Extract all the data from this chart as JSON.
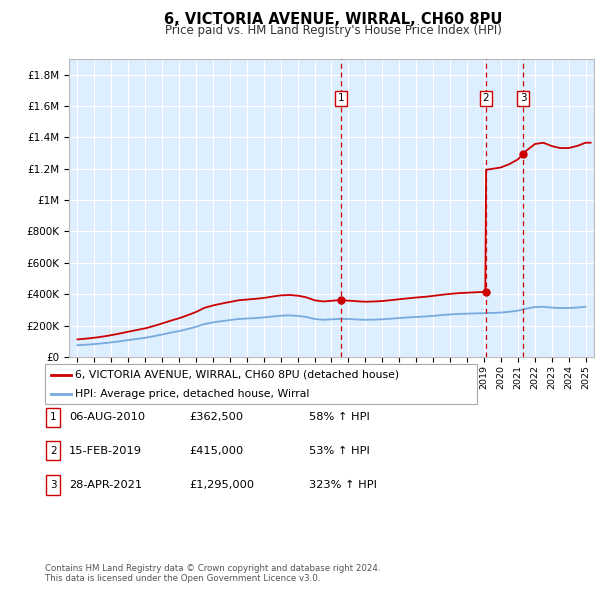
{
  "title": "6, VICTORIA AVENUE, WIRRAL, CH60 8PU",
  "subtitle": "Price paid vs. HM Land Registry's House Price Index (HPI)",
  "xlim": [
    1994.5,
    2025.5
  ],
  "ylim": [
    0,
    1900000
  ],
  "yticks": [
    0,
    200000,
    400000,
    600000,
    800000,
    1000000,
    1200000,
    1400000,
    1600000,
    1800000
  ],
  "ytick_labels": [
    "£0",
    "£200K",
    "£400K",
    "£600K",
    "£800K",
    "£1M",
    "£1.2M",
    "£1.4M",
    "£1.6M",
    "£1.8M"
  ],
  "plot_bg_color": "#ddeeff",
  "grid_color": "#ffffff",
  "transactions": [
    {
      "id": 1,
      "date": "06-AUG-2010",
      "price": 362500,
      "hpi_pct": "58%",
      "x": 2010.58
    },
    {
      "id": 2,
      "date": "15-FEB-2019",
      "price": 415000,
      "hpi_pct": "53%",
      "x": 2019.12
    },
    {
      "id": 3,
      "date": "28-APR-2021",
      "price": 1295000,
      "hpi_pct": "323%",
      "x": 2021.32
    }
  ],
  "red_line_color": "#cc0000",
  "blue_line_color": "#77aadd",
  "transaction_box_color": "#cc0000",
  "dashed_line_color": "#cc0000",
  "legend_label_red": "6, VICTORIA AVENUE, WIRRAL, CH60 8PU (detached house)",
  "legend_label_blue": "HPI: Average price, detached house, Wirral",
  "footer": "Contains HM Land Registry data © Crown copyright and database right 2024.\nThis data is licensed under the Open Government Licence v3.0.",
  "hpi_data_x": [
    1995.0,
    1995.5,
    1996.0,
    1996.5,
    1997.0,
    1997.5,
    1998.0,
    1998.5,
    1999.0,
    1999.5,
    2000.0,
    2000.5,
    2001.0,
    2001.5,
    2002.0,
    2002.5,
    2003.0,
    2003.5,
    2004.0,
    2004.5,
    2005.0,
    2005.5,
    2006.0,
    2006.5,
    2007.0,
    2007.5,
    2008.0,
    2008.5,
    2009.0,
    2009.5,
    2010.0,
    2010.5,
    2011.0,
    2011.5,
    2012.0,
    2012.5,
    2013.0,
    2013.5,
    2014.0,
    2014.5,
    2015.0,
    2015.5,
    2016.0,
    2016.5,
    2017.0,
    2017.5,
    2018.0,
    2018.5,
    2019.0,
    2019.5,
    2020.0,
    2020.5,
    2021.0,
    2021.5,
    2022.0,
    2022.5,
    2023.0,
    2023.5,
    2024.0,
    2024.5,
    2025.0
  ],
  "hpi_data_y": [
    75000,
    78000,
    82000,
    87000,
    93000,
    100000,
    108000,
    115000,
    122000,
    132000,
    143000,
    155000,
    165000,
    178000,
    192000,
    210000,
    220000,
    228000,
    235000,
    242000,
    245000,
    248000,
    252000,
    258000,
    263000,
    265000,
    262000,
    255000,
    242000,
    237000,
    240000,
    243000,
    242000,
    239000,
    237000,
    238000,
    240000,
    244000,
    248000,
    252000,
    255000,
    258000,
    262000,
    267000,
    271000,
    274000,
    276000,
    278000,
    279000,
    281000,
    283000,
    288000,
    295000,
    308000,
    318000,
    320000,
    315000,
    312000,
    312000,
    315000,
    320000
  ]
}
